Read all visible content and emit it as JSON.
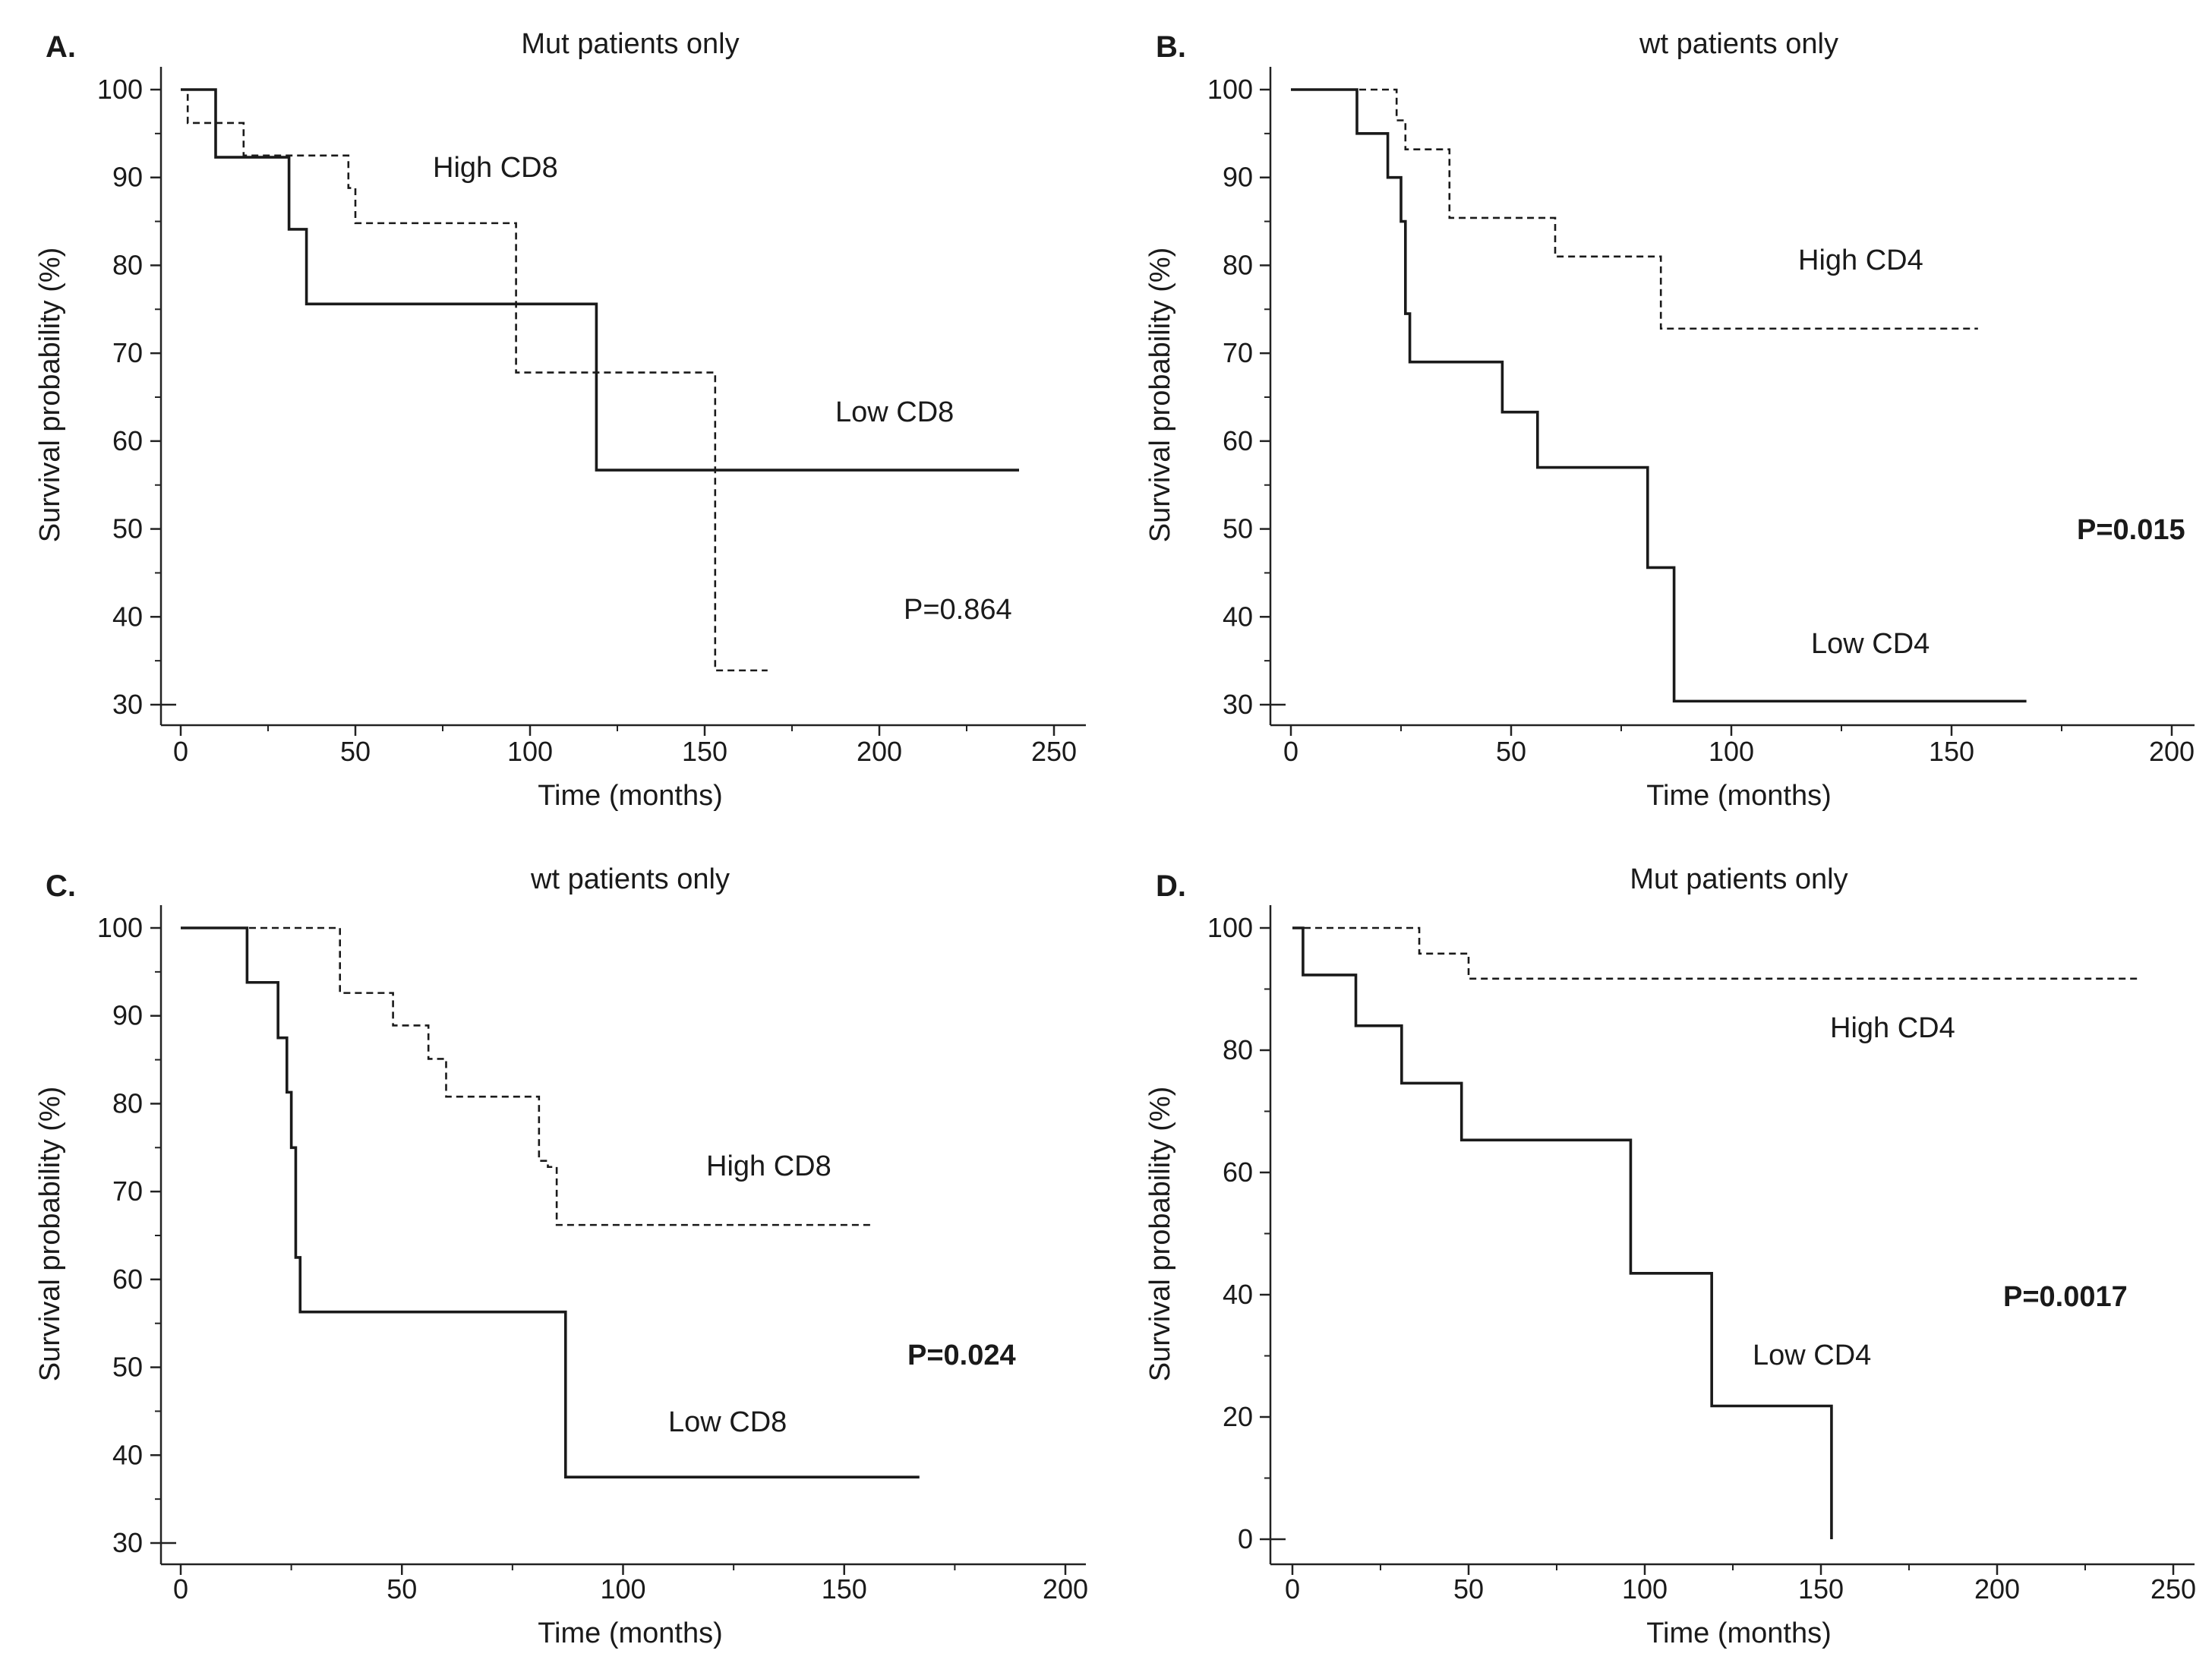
{
  "chart_data": [
    {
      "type": "line",
      "panel": "A.",
      "title": "Mut patients only",
      "xlabel": "Time (months)",
      "ylabel": "Survival probability (%)",
      "xlim": [
        0,
        250
      ],
      "ylim": [
        30,
        100
      ],
      "xticks": [
        "0",
        "50",
        "100",
        "150",
        "200",
        "250"
      ],
      "yticks": [
        "30",
        "40",
        "50",
        "60",
        "70",
        "80",
        "90",
        "100"
      ],
      "pvalue": "P=0.864",
      "pvalue_bold": false,
      "series": [
        {
          "name": "High CD8",
          "style": "dashed",
          "steps": [
            [
              0,
              100
            ],
            [
              2,
              96.2
            ],
            [
              18,
              92.5
            ],
            [
              48,
              88.8
            ],
            [
              50,
              84.8
            ],
            [
              96,
              67.8
            ],
            [
              153,
              33.9
            ]
          ],
          "end": 168
        },
        {
          "name": "Low CD8",
          "style": "solid",
          "steps": [
            [
              0,
              100
            ],
            [
              10,
              92.3
            ],
            [
              31,
              84.1
            ],
            [
              36,
              75.6
            ],
            [
              119,
              56.7
            ]
          ],
          "end": 240
        }
      ]
    },
    {
      "type": "line",
      "panel": "B.",
      "title": "wt patients only",
      "xlabel": "Time (months)",
      "ylabel": "Survival probability (%)",
      "xlim": [
        0,
        200
      ],
      "ylim": [
        30,
        100
      ],
      "xticks": [
        "0",
        "50",
        "100",
        "150",
        "200"
      ],
      "yticks": [
        "30",
        "40",
        "50",
        "60",
        "70",
        "80",
        "90",
        "100"
      ],
      "pvalue": "P=0.015",
      "pvalue_bold": true,
      "series": [
        {
          "name": "High CD4",
          "style": "dashed",
          "steps": [
            [
              0,
              100
            ],
            [
              24,
              96.5
            ],
            [
              26,
              93.2
            ],
            [
              36,
              85.4
            ],
            [
              60,
              81
            ],
            [
              84,
              72.8
            ]
          ],
          "end": 156
        },
        {
          "name": "Low CD4",
          "style": "solid",
          "steps": [
            [
              0,
              100
            ],
            [
              15,
              95
            ],
            [
              22,
              90
            ],
            [
              25,
              85
            ],
            [
              26,
              74.5
            ],
            [
              27,
              69
            ],
            [
              48,
              63.3
            ],
            [
              56,
              57
            ],
            [
              81,
              45.6
            ],
            [
              87,
              30.4
            ]
          ],
          "end": 167
        }
      ]
    },
    {
      "type": "line",
      "panel": "C.",
      "title": "wt patients only",
      "xlabel": "Time (months)",
      "ylabel": "Survival probability (%)",
      "xlim": [
        0,
        200
      ],
      "ylim": [
        30,
        100
      ],
      "xticks": [
        "0",
        "50",
        "100",
        "150",
        "200"
      ],
      "yticks": [
        "30",
        "40",
        "50",
        "60",
        "70",
        "80",
        "90",
        "100"
      ],
      "pvalue": "P=0.024",
      "pvalue_bold": true,
      "series": [
        {
          "name": "High CD8",
          "style": "dashed",
          "steps": [
            [
              0,
              100
            ],
            [
              36,
              92.6
            ],
            [
              48,
              88.9
            ],
            [
              56,
              85.1
            ],
            [
              60,
              80.8
            ],
            [
              81,
              73.5
            ],
            [
              83,
              72.8
            ],
            [
              85,
              66.2
            ]
          ],
          "end": 156
        },
        {
          "name": "Low CD8",
          "style": "solid",
          "steps": [
            [
              0,
              100
            ],
            [
              15,
              93.8
            ],
            [
              22,
              87.5
            ],
            [
              24,
              81.3
            ],
            [
              25,
              75
            ],
            [
              26,
              62.5
            ],
            [
              27,
              56.3
            ],
            [
              87,
              37.5
            ]
          ],
          "end": 167
        }
      ]
    },
    {
      "type": "line",
      "panel": "D.",
      "title": "Mut patients only",
      "xlabel": "Time (months)",
      "ylabel": "Survival probability (%)",
      "xlim": [
        0,
        250
      ],
      "ylim": [
        0,
        100
      ],
      "xticks": [
        "0",
        "50",
        "100",
        "150",
        "200",
        "250"
      ],
      "yticks": [
        "0",
        "20",
        "40",
        "60",
        "80",
        "100"
      ],
      "pvalue": "P=0.0017",
      "pvalue_bold": true,
      "series": [
        {
          "name": "High CD4",
          "style": "dashed",
          "steps": [
            [
              0,
              100
            ],
            [
              36,
              95.8
            ],
            [
              50,
              91.7
            ]
          ],
          "end": 240
        },
        {
          "name": "Low CD4",
          "style": "solid",
          "steps": [
            [
              0,
              100
            ],
            [
              3,
              92.3
            ],
            [
              18,
              84
            ],
            [
              31,
              74.6
            ],
            [
              48,
              65.3
            ],
            [
              96,
              43.5
            ],
            [
              119,
              21.8
            ],
            [
              153,
              0
            ]
          ],
          "end": 153
        }
      ]
    }
  ]
}
